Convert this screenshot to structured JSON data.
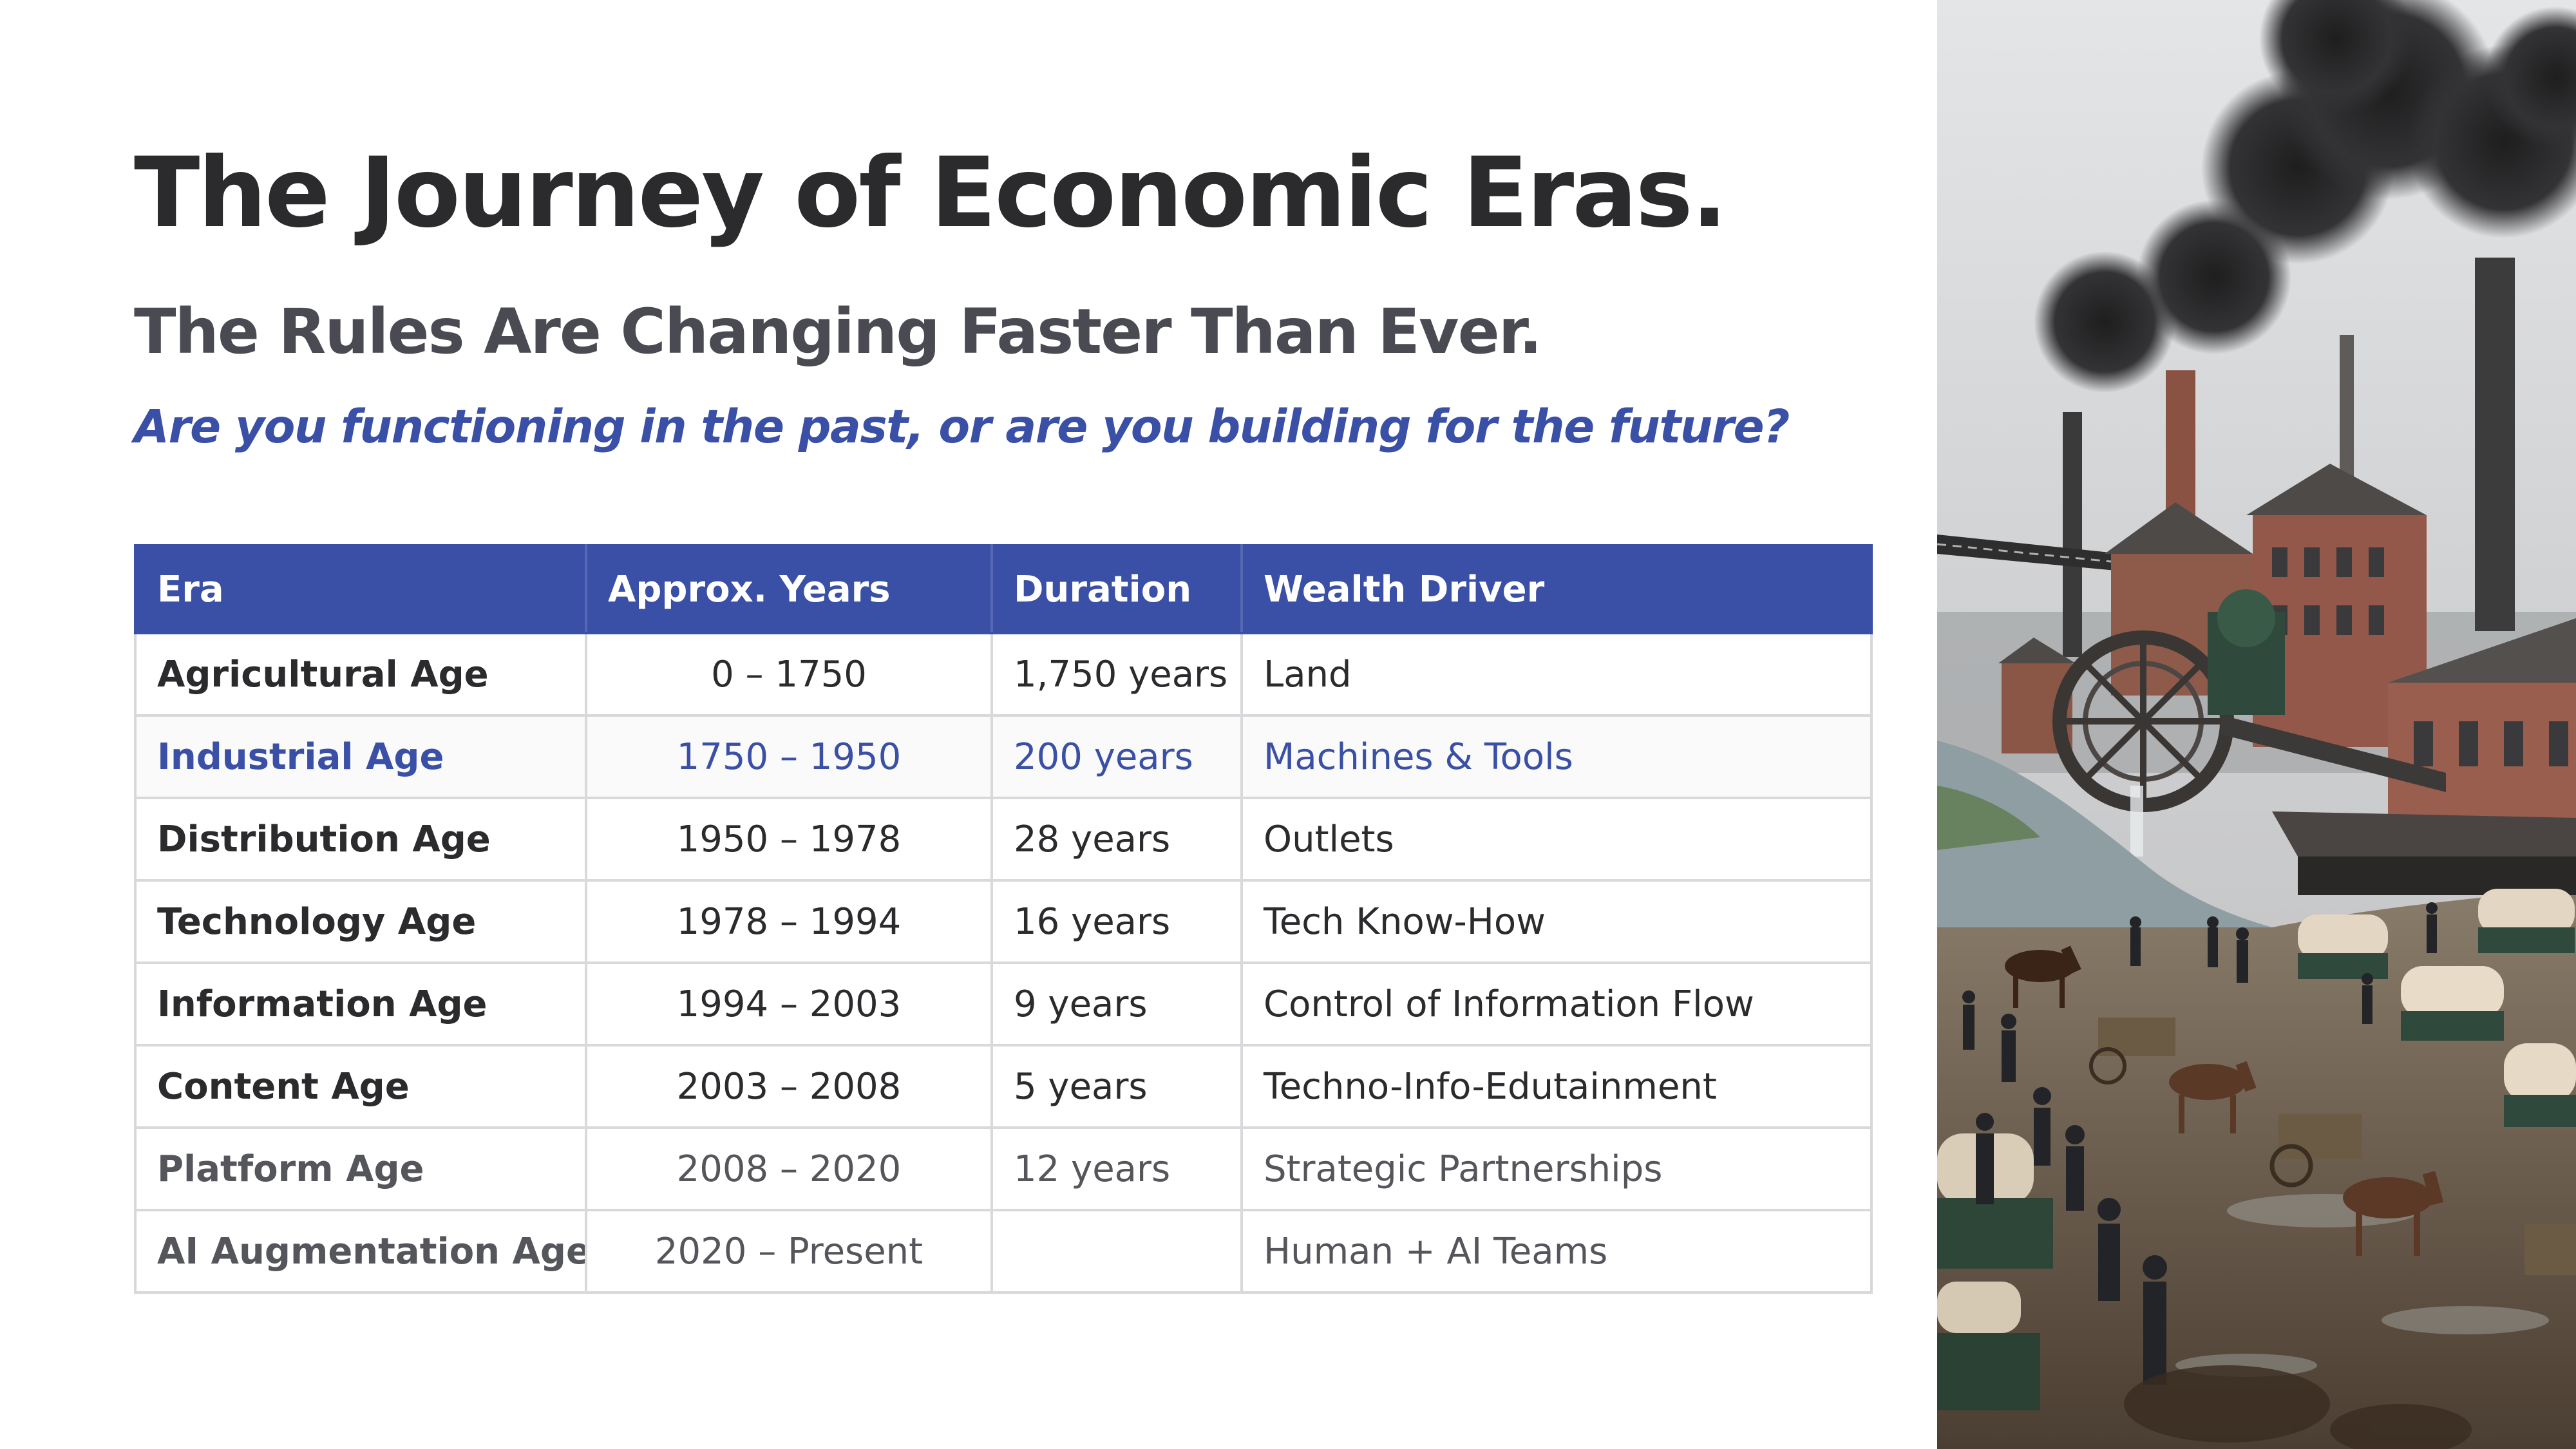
{
  "title": "The Journey of Economic Eras.",
  "subtitle": "The Rules Are Changing Faster Than Ever.",
  "tagline": "Are you functioning in the past, or are you building for the future?",
  "table": {
    "headers": {
      "era": "Era",
      "years": "Approx.  Years",
      "duration": "Duration",
      "wealth": "Wealth  Driver"
    },
    "rows": [
      {
        "era": "Agricultural Age",
        "years": "0 – 1750",
        "duration": "1,750 years",
        "wealth": "Land"
      },
      {
        "era": "Industrial Age",
        "years": "1750 – 1950",
        "duration": "200 years",
        "wealth": "Machines & Tools"
      },
      {
        "era": "Distribution Age",
        "years": "1950 – 1978",
        "duration": "28 years",
        "wealth": "Outlets"
      },
      {
        "era": "Technology Age",
        "years": "1978 – 1994",
        "duration": "16 years",
        "wealth": "Tech Know-How"
      },
      {
        "era": "Information Age",
        "years": "1994 – 2003",
        "duration": "9 years",
        "wealth": "Control of Information Flow"
      },
      {
        "era": "Content Age",
        "years": "2003 – 2008",
        "duration": "5 years",
        "wealth": "Techno-Info-Edutainment"
      },
      {
        "era": "Platform Age",
        "years": "2008 – 2020",
        "duration": "12 years",
        "wealth": "Strategic Partnerships"
      },
      {
        "era": "AI Augmentation Age",
        "years": "2020 – Present",
        "duration": "",
        "wealth": "Human + AI Teams"
      }
    ]
  },
  "colors": {
    "accent": "#3a4fa6",
    "title": "#2b2b2e",
    "subtitle": "#4a4a52",
    "border": "#d9d9dc"
  },
  "image": {
    "subject": "industrial-revolution-factory-scene"
  }
}
